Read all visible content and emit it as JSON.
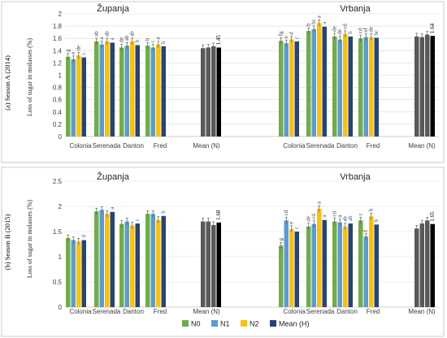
{
  "colors": {
    "N0": "#70ad47",
    "N1": "#5b9bd5",
    "N2": "#ffc000",
    "MeanH": "#264478",
    "MeanN_bars": "#595959",
    "MeanN_total": "#000000"
  },
  "legend": {
    "items": [
      {
        "label": "N0",
        "color": "#70ad47"
      },
      {
        "label": "N1",
        "color": "#5b9bd5"
      },
      {
        "label": "N2",
        "color": "#ffc000"
      },
      {
        "label": "Mean (H)",
        "color": "#264478"
      }
    ]
  },
  "chart_data": [
    {
      "type": "bar",
      "season_label": "(a) Season A (2014)",
      "ylabel": "Loss of sugar in molasses (%)",
      "ylim": [
        0,
        2
      ],
      "yticks": [
        "0",
        "0.2",
        "0.4",
        "0.6",
        "0.8",
        "1",
        "1.2",
        "1.4",
        "1.6",
        "1.8",
        "2"
      ],
      "locations": [
        {
          "name": "Županja",
          "categories": [
            "Colonia",
            "Serenada",
            "Danton",
            "Fred"
          ],
          "series": [
            {
              "name": "N0",
              "values": [
                1.3,
                1.55,
                1.45,
                1.48
              ],
              "letters": [
                "g",
                "ab",
                "de",
                "b"
              ]
            },
            {
              "name": "N1",
              "values": [
                1.26,
                1.5,
                1.48,
                1.45
              ],
              "letters": [
                "e",
                "a",
                "ab",
                "c"
              ]
            },
            {
              "name": "N2",
              "values": [
                1.32,
                1.55,
                1.55,
                1.5
              ],
              "letters": [
                "de",
                "ab",
                "ab",
                "a"
              ]
            },
            {
              "name": "Mean (H)",
              "values": [
                1.29,
                1.53,
                1.49,
                1.47
              ],
              "letters": [
                "c",
                "a",
                "b",
                "b"
              ]
            }
          ],
          "mean_n": {
            "label": "Mean (N)",
            "values": [
              1.44,
              1.45,
              1.47
            ],
            "total": 1.45,
            "total_label": "1.45"
          }
        },
        {
          "name": "Vrbanja",
          "categories": [
            "Colonia",
            "Serenada",
            "Danton",
            "Fred"
          ],
          "series": [
            {
              "name": "N0",
              "values": [
                1.56,
                1.72,
                1.63,
                1.6
              ],
              "letters": [
                "fg",
                "b",
                "de",
                "cd"
              ]
            },
            {
              "name": "N1",
              "values": [
                1.52,
                1.75,
                1.58,
                1.62
              ],
              "letters": [
                "e",
                "bc",
                "de",
                "ef"
              ]
            },
            {
              "name": "N2",
              "values": [
                1.58,
                1.85,
                1.67,
                1.62
              ],
              "letters": [
                "d",
                "a",
                "cd",
                "de"
              ]
            },
            {
              "name": "Mean (H)",
              "values": [
                1.55,
                1.79,
                1.63,
                1.61
              ],
              "letters": [
                "c",
                "a",
                "b",
                "bc"
              ]
            }
          ],
          "mean_n": {
            "label": "Mean (N)",
            "values": [
              1.63,
              1.62,
              1.66
            ],
            "total": 1.64,
            "total_label": "1.64"
          }
        }
      ]
    },
    {
      "type": "bar",
      "season_label": "(b) Season B (2015)",
      "ylabel": "Loss of sugar in molasses (%)",
      "ylim": [
        0,
        2.5
      ],
      "yticks": [
        "0",
        "0.5",
        "1",
        "1.5",
        "2",
        "2.5"
      ],
      "locations": [
        {
          "name": "Županja",
          "categories": [
            "Colonia",
            "Serenada",
            "Danton",
            "Fred"
          ],
          "series": [
            {
              "name": "N0",
              "values": [
                1.37,
                1.9,
                1.65,
                1.85
              ],
              "letters": [
                "",
                "",
                "",
                ""
              ]
            },
            {
              "name": "N1",
              "values": [
                1.33,
                1.93,
                1.7,
                1.85
              ],
              "letters": [
                "",
                "",
                "",
                ""
              ]
            },
            {
              "name": "N2",
              "values": [
                1.3,
                1.85,
                1.62,
                1.73
              ],
              "letters": [
                "",
                "",
                "",
                ""
              ]
            },
            {
              "name": "Mean (H)",
              "values": [
                1.33,
                1.89,
                1.66,
                1.81
              ],
              "letters": [
                "d",
                "a",
                "c",
                "b"
              ]
            }
          ],
          "mean_n": {
            "label": "Mean (N)",
            "values": [
              1.7,
              1.7,
              1.63
            ],
            "total": 1.68,
            "total_label": "1.68"
          }
        },
        {
          "name": "Vrbanja",
          "categories": [
            "Colonia",
            "Serenada",
            "Danton",
            "Fred"
          ],
          "series": [
            {
              "name": "N0",
              "values": [
                1.22,
                1.6,
                1.7,
                1.72
              ],
              "letters": [
                "g",
                "de",
                "cd",
                "c"
              ]
            },
            {
              "name": "N1",
              "values": [
                1.72,
                1.65,
                1.68,
                1.4
              ],
              "letters": [
                "cd",
                "cd",
                "a",
                "f"
              ]
            },
            {
              "name": "N2",
              "values": [
                1.55,
                1.95,
                1.6,
                1.8
              ],
              "letters": [
                "e",
                "a",
                "ab",
                "b"
              ]
            },
            {
              "name": "Mean (H)",
              "values": [
                1.5,
                1.73,
                1.66,
                1.64
              ],
              "letters": [
                "c",
                "a",
                "ab",
                "b"
              ]
            }
          ],
          "mean_n": {
            "label": "Mean (N)",
            "values": [
              1.56,
              1.66,
              1.72
            ],
            "total": 1.65,
            "total_label": "1.65"
          }
        }
      ]
    }
  ]
}
